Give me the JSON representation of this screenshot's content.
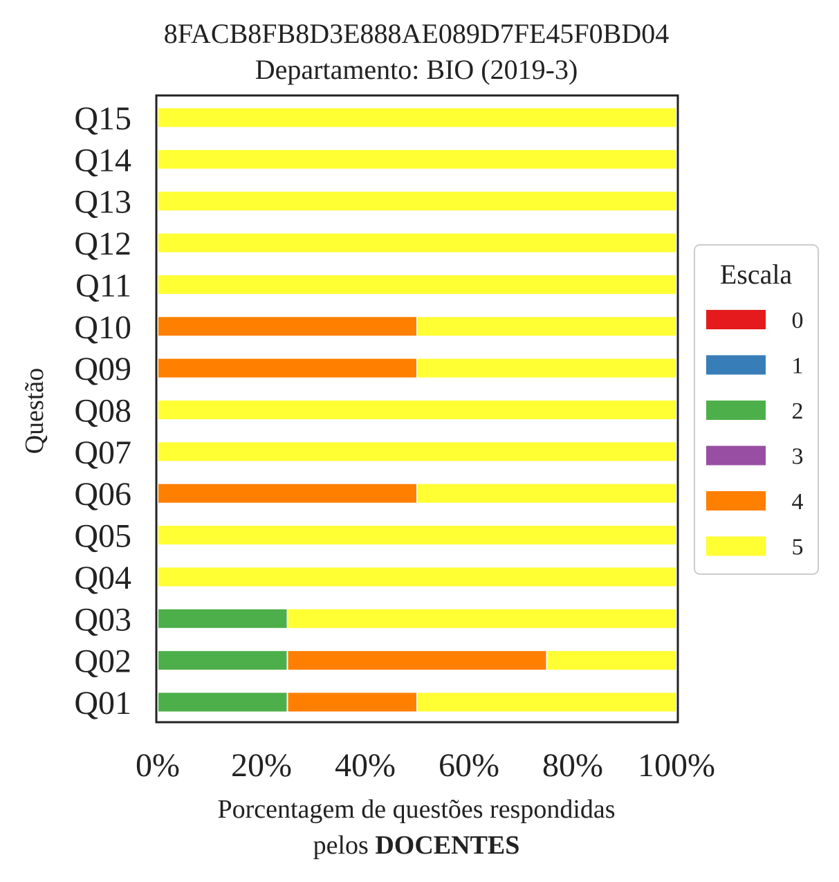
{
  "chart_data": {
    "type": "bar",
    "orientation": "horizontal",
    "stacked": true,
    "title": "8FACB8FB8D3E888AE089D7FE45F0BD04",
    "subtitle": "Departamento: BIO (2019-3)",
    "ylabel": "Questão",
    "xlabel_line1": "Porcentagem de questões respondidas",
    "xlabel_line2_prefix": "pelos ",
    "xlabel_line2_bold": "DOCENTES",
    "xlim": [
      0,
      100
    ],
    "xticks": [
      "0%",
      "20%",
      "40%",
      "60%",
      "80%",
      "100%"
    ],
    "xtick_values": [
      0,
      20,
      40,
      60,
      80,
      100
    ],
    "categories": [
      "Q01",
      "Q02",
      "Q03",
      "Q04",
      "Q05",
      "Q06",
      "Q07",
      "Q08",
      "Q09",
      "Q10",
      "Q11",
      "Q12",
      "Q13",
      "Q14",
      "Q15"
    ],
    "legend_title": "Escala",
    "legend_position": "right",
    "grid": false,
    "series": [
      {
        "name": "0",
        "color": "#e41a1c",
        "values": [
          0,
          0,
          0,
          0,
          0,
          0,
          0,
          0,
          0,
          0,
          0,
          0,
          0,
          0,
          0
        ]
      },
      {
        "name": "1",
        "color": "#377eb8",
        "values": [
          0,
          0,
          0,
          0,
          0,
          0,
          0,
          0,
          0,
          0,
          0,
          0,
          0,
          0,
          0
        ]
      },
      {
        "name": "2",
        "color": "#4daf4a",
        "values": [
          25,
          25,
          25,
          0,
          0,
          0,
          0,
          0,
          0,
          0,
          0,
          0,
          0,
          0,
          0
        ]
      },
      {
        "name": "3",
        "color": "#984ea3",
        "values": [
          0,
          0,
          0,
          0,
          0,
          0,
          0,
          0,
          0,
          0,
          0,
          0,
          0,
          0,
          0
        ]
      },
      {
        "name": "4",
        "color": "#ff7f00",
        "values": [
          25,
          50,
          0,
          0,
          0,
          50,
          0,
          0,
          50,
          50,
          0,
          0,
          0,
          0,
          0
        ]
      },
      {
        "name": "5",
        "color": "#ffff33",
        "values": [
          50,
          25,
          75,
          100,
          100,
          50,
          100,
          100,
          50,
          50,
          100,
          100,
          100,
          100,
          100
        ]
      }
    ]
  }
}
